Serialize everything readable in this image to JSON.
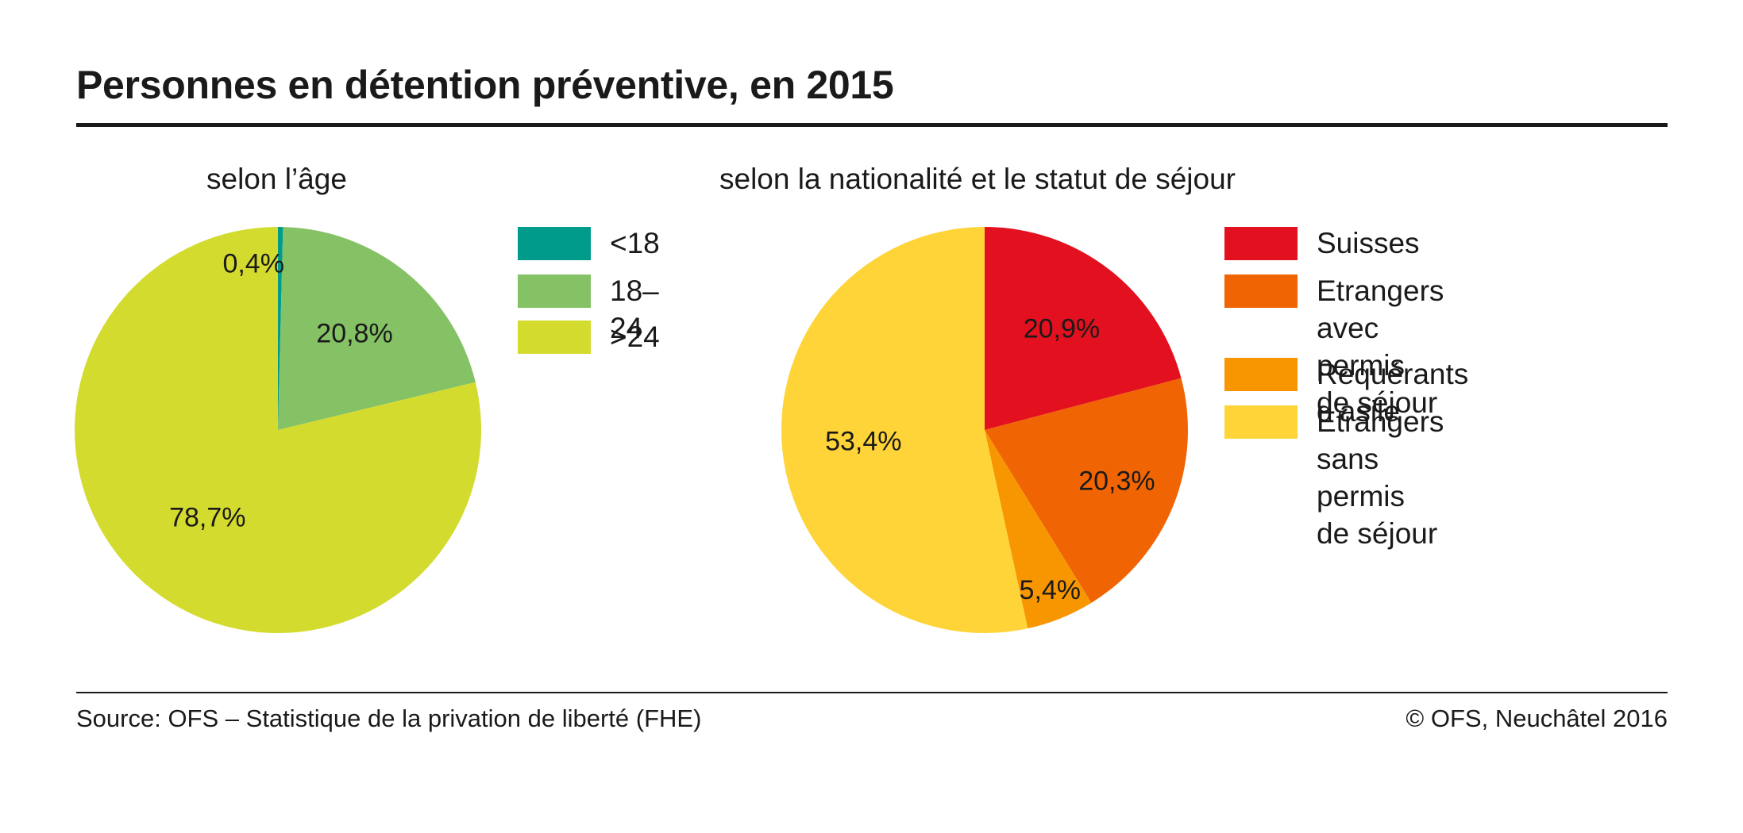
{
  "title": "Personnes en détention préventive, en 2015",
  "footer": {
    "source": "Source: OFS – Statistique de la privation de liberté (FHE)",
    "copyright": "© OFS, Neuchâtel 2016"
  },
  "chart_data": [
    {
      "type": "pie",
      "title": "selon l’âge",
      "legend": "right",
      "slices": [
        {
          "label": "<18",
          "value": 0.4,
          "value_label": "0,4%",
          "color": "#009b8a"
        },
        {
          "label": "18–24",
          "value": 20.8,
          "value_label": "20,8%",
          "color": "#85c165"
        },
        {
          "label": ">24",
          "value": 78.7,
          "value_label": "78,7%",
          "color": "#d4db2f"
        }
      ]
    },
    {
      "type": "pie",
      "title": "selon la nationalité et le statut de séjour",
      "legend": "right",
      "slices": [
        {
          "label": "Suisses",
          "value": 20.9,
          "value_label": "20,9%",
          "color": "#e3101f"
        },
        {
          "label": "Etrangers avec\npermis de séjour",
          "value": 20.3,
          "value_label": "20,3%",
          "color": "#f06404"
        },
        {
          "label": "Requérants d’asile",
          "value": 5.4,
          "value_label": "5,4%",
          "color": "#f79600"
        },
        {
          "label": "Etrangers sans\npermis de séjour",
          "value": 53.4,
          "value_label": "53,4%",
          "color": "#fed439"
        }
      ]
    }
  ]
}
